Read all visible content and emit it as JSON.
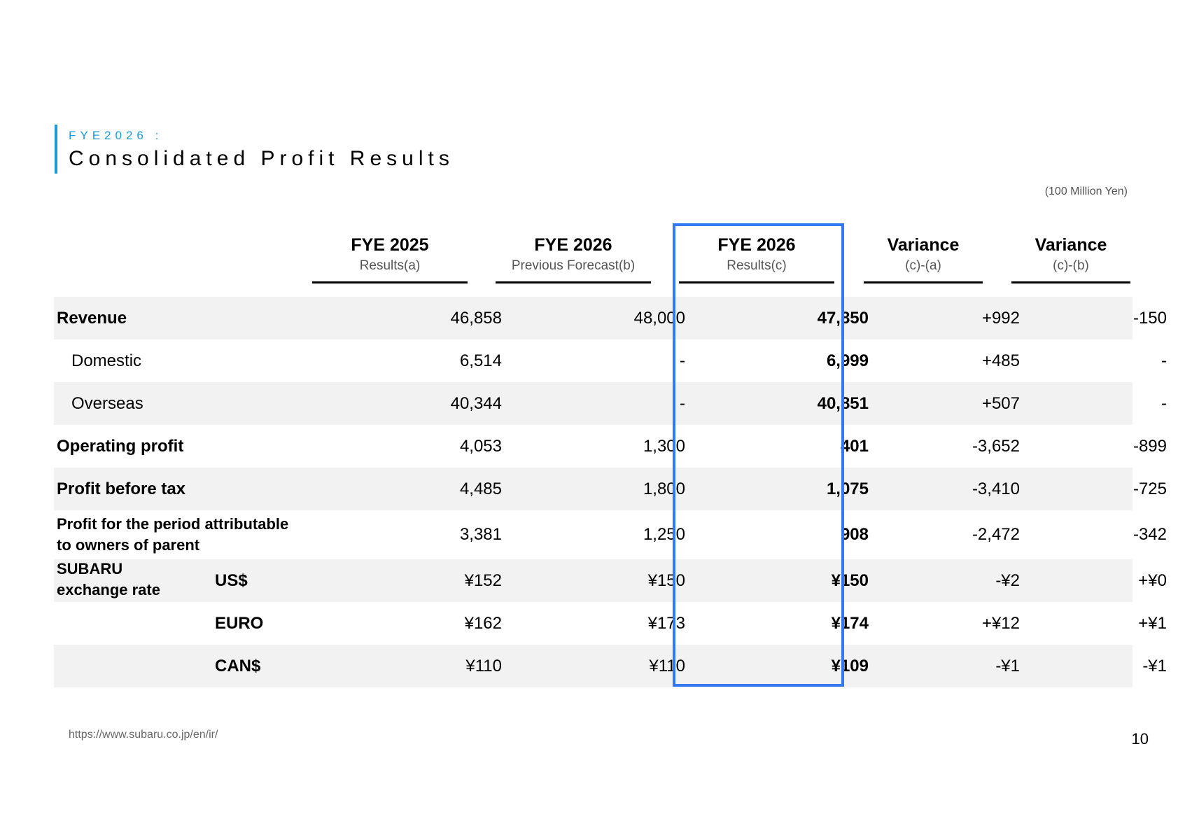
{
  "header": {
    "subtitle": "FYE2026 :",
    "title": "Consolidated Profit Results",
    "unit": "(100 Million Yen)"
  },
  "columns": [
    {
      "title": "FYE 2025",
      "sub": "Results(a)"
    },
    {
      "title": "FYE 2026",
      "sub": "Previous Forecast(b)"
    },
    {
      "title": "FYE 2026",
      "sub": "Results(c)"
    },
    {
      "title": "Variance",
      "sub": "(c)-(a)"
    },
    {
      "title": "Variance",
      "sub": "(c)-(b)"
    }
  ],
  "rows": [
    {
      "label": "Revenue",
      "values": [
        "46,858",
        "48,000",
        "47,850",
        "+992",
        "-150"
      ]
    },
    {
      "label": "Domestic",
      "values": [
        "6,514",
        "-",
        "6,999",
        "+485",
        "-"
      ]
    },
    {
      "label": "Overseas",
      "values": [
        "40,344",
        "-",
        "40,851",
        "+507",
        "-"
      ]
    },
    {
      "label": "Operating profit",
      "values": [
        "4,053",
        "1,300",
        "401",
        "-3,652",
        "-899"
      ]
    },
    {
      "label": "Profit before tax",
      "values": [
        "4,485",
        "1,800",
        "1,075",
        "-3,410",
        "-725"
      ]
    },
    {
      "label_line1": "Profit for the period attributable",
      "label_line2": "to owners of parent",
      "values": [
        "3,381",
        "1,250",
        "908",
        "-2,472",
        "-342"
      ]
    },
    {
      "group_line1": "SUBARU",
      "group_line2": "exchange rate",
      "currency": "US$",
      "values": [
        "¥152",
        "¥150",
        "¥150",
        "-¥2",
        "+¥0"
      ]
    },
    {
      "currency": "EURO",
      "values": [
        "¥162",
        "¥173",
        "¥174",
        "+¥12",
        "+¥1"
      ]
    },
    {
      "currency": "CAN$",
      "values": [
        "¥110",
        "¥110",
        "¥109",
        "-¥1",
        "-¥1"
      ]
    }
  ],
  "footer": {
    "url": "https://www.subaru.co.jp/en/ir/",
    "page": "10"
  },
  "colors": {
    "accent": "#1a9bd7",
    "highlight": "#3478f6",
    "row_shade": "#f2f2f2"
  }
}
